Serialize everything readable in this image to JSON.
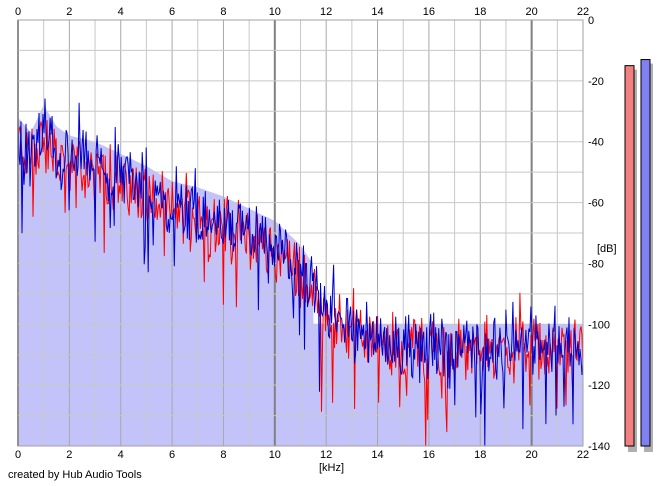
{
  "footer": {
    "credit": "created by Hub Audio Tools"
  },
  "colors": {
    "background": "#ffffff",
    "grid": "#c8c8c8",
    "grid_major": "#808080",
    "fill": "#c3c3fa",
    "channel_left": "#ff0000",
    "channel_right": "#0000cc",
    "meter_left_fill": "#f28080",
    "meter_right_fill": "#8080f0",
    "meter_shadow": "#b0b0b0"
  },
  "chart_data": {
    "type": "line",
    "xlabel": "[kHz]",
    "ylabel": "[dB]",
    "xlim": [
      0,
      22
    ],
    "ylim": [
      -140,
      0
    ],
    "x_ticks": [
      "0",
      "2",
      "4",
      "6",
      "8",
      "10",
      "12",
      "14",
      "16",
      "18",
      "20",
      "22"
    ],
    "y_ticks": [
      "0",
      "-20",
      "-40",
      "-60",
      "-80",
      "-100",
      "-120",
      "-140"
    ],
    "grid": true,
    "x_major_every_khz": 10,
    "x_minor_step_khz": 1,
    "series": [
      {
        "color": "#ff0000",
        "x": [
          0,
          0.5,
          1,
          1.5,
          2,
          3,
          4,
          5,
          6,
          7,
          8,
          9,
          10,
          11,
          12,
          13,
          14,
          15,
          16,
          17,
          18,
          19,
          20,
          21,
          22
        ],
        "values": [
          -40,
          -46,
          -40,
          -46,
          -48,
          -50,
          -54,
          -57,
          -63,
          -65,
          -68,
          -72,
          -76,
          -84,
          -96,
          -103,
          -106,
          -107,
          -108,
          -108,
          -108,
          -108,
          -108,
          -108,
          -110
        ]
      },
      {
        "color": "#0000cc",
        "x": [
          0,
          0.5,
          1,
          1.5,
          2,
          3,
          4,
          5,
          6,
          7,
          8,
          9,
          10,
          11,
          12,
          13,
          14,
          15,
          16,
          17,
          18,
          19,
          20,
          21,
          22
        ],
        "values": [
          -40,
          -45,
          -36,
          -43,
          -46,
          -48,
          -52,
          -56,
          -61,
          -63,
          -66,
          -70,
          -74,
          -82,
          -95,
          -102,
          -105,
          -106,
          -107,
          -107,
          -107,
          -107,
          -107,
          -107,
          -108
        ]
      }
    ],
    "noise_floor_db": -100,
    "meters": [
      {
        "channel": "left",
        "level_db": -15
      },
      {
        "channel": "right",
        "level_db": -13
      }
    ]
  }
}
